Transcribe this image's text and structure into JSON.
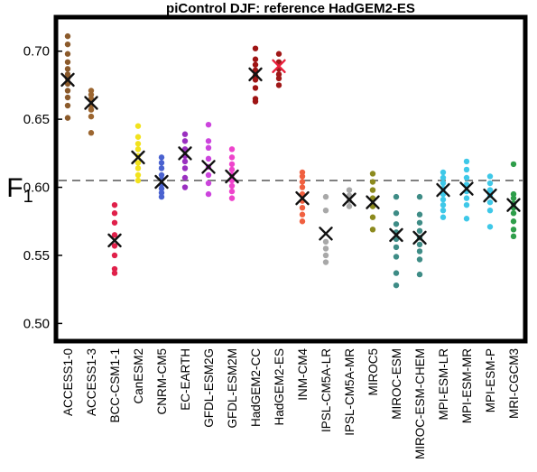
{
  "chart_data": {
    "type": "scatter",
    "title": "piControl DJF: reference HadGEM2-ES",
    "ylabel": "F",
    "ylabel_subscript": "1",
    "ylim": [
      0.487,
      0.725
    ],
    "yticks": [
      0.5,
      0.55,
      0.6,
      0.65,
      0.7
    ],
    "ytick_labels": [
      "0.50",
      "0.55",
      "0.60",
      "0.65",
      "0.70"
    ],
    "reference_line": {
      "y": 0.605,
      "style": "dashed",
      "color": "#808080"
    },
    "grid": false,
    "legend": "none",
    "mean_marker": "x",
    "categories": [
      {
        "name": "ACCESS1-0",
        "color": "#8B5A2B",
        "points": [
          0.711,
          0.705,
          0.698,
          0.692,
          0.687,
          0.683,
          0.68,
          0.676,
          0.671,
          0.666,
          0.66,
          0.651
        ],
        "mean": 0.679
      },
      {
        "name": "ACCESS1-3",
        "color": "#9C6630",
        "points": [
          0.671,
          0.668,
          0.665,
          0.66,
          0.657,
          0.652,
          0.64
        ],
        "mean": 0.662
      },
      {
        "name": "BCC-CSM1-1",
        "color": "#E0204A",
        "points": [
          0.587,
          0.581,
          0.574,
          0.565,
          0.557,
          0.55,
          0.54,
          0.537
        ],
        "mean": 0.561
      },
      {
        "name": "CanESM2",
        "color": "#F2E21C",
        "points": [
          0.645,
          0.637,
          0.632,
          0.628,
          0.623,
          0.618,
          0.614,
          0.609,
          0.605
        ],
        "mean": 0.622
      },
      {
        "name": "CNRM-CM5",
        "color": "#4A62D0",
        "points": [
          0.622,
          0.618,
          0.614,
          0.609,
          0.606,
          0.602,
          0.599,
          0.596,
          0.593
        ],
        "mean": 0.604
      },
      {
        "name": "EC-EARTH",
        "color": "#9A30C0",
        "points": [
          0.639,
          0.634,
          0.628,
          0.623,
          0.619,
          0.614,
          0.607,
          0.6
        ],
        "mean": 0.625
      },
      {
        "name": "GFDL-ESM2G",
        "color": "#CC44DD",
        "points": [
          0.646,
          0.634,
          0.629,
          0.621,
          0.615,
          0.609,
          0.603,
          0.595
        ],
        "mean": 0.615
      },
      {
        "name": "GFDL-ESM2M",
        "color": "#EE44CC",
        "points": [
          0.628,
          0.622,
          0.617,
          0.613,
          0.609,
          0.605,
          0.601,
          0.597,
          0.592
        ],
        "mean": 0.608
      },
      {
        "name": "HadGEM2-CC",
        "color": "#9E1414",
        "points": [
          0.702,
          0.694,
          0.69,
          0.686,
          0.682,
          0.679,
          0.673,
          0.665,
          0.663
        ],
        "mean": 0.683
      },
      {
        "name": "HadGEM2-ES",
        "color": "#A01818",
        "points": [
          0.698,
          0.692,
          0.687,
          0.683,
          0.68,
          0.675
        ],
        "mean": 0.689,
        "mean_highlight": "#E8203C"
      },
      {
        "name": "INM-CM4",
        "color": "#F06040",
        "points": [
          0.611,
          0.608,
          0.604,
          0.6,
          0.595,
          0.59,
          0.585,
          0.58,
          0.575
        ],
        "mean": 0.592
      },
      {
        "name": "IPSL-CM5A-LR",
        "color": "#A8A8A8",
        "points": [
          0.593,
          0.583,
          0.56,
          0.555,
          0.55,
          0.545
        ],
        "mean": 0.566
      },
      {
        "name": "IPSL-CM5A-MR",
        "color": "#A8A8A8",
        "points": [
          0.598,
          0.594,
          0.59,
          0.586
        ],
        "mean": 0.591
      },
      {
        "name": "MIROC5",
        "color": "#8C8A1E",
        "points": [
          0.61,
          0.604,
          0.598,
          0.592,
          0.586,
          0.578,
          0.569
        ],
        "mean": 0.589
      },
      {
        "name": "MIROC-ESM",
        "color": "#3E8C86",
        "points": [
          0.593,
          0.581,
          0.573,
          0.567,
          0.562,
          0.556,
          0.549,
          0.537,
          0.528
        ],
        "mean": 0.565
      },
      {
        "name": "MIROC-ESM-CHEM",
        "color": "#3E8C86",
        "points": [
          0.593,
          0.58,
          0.574,
          0.568,
          0.563,
          0.558,
          0.553,
          0.547,
          0.536
        ],
        "mean": 0.563
      },
      {
        "name": "MPI-ESM-LR",
        "color": "#3EC8E8",
        "points": [
          0.611,
          0.607,
          0.603,
          0.599,
          0.595,
          0.591,
          0.587,
          0.583,
          0.578
        ],
        "mean": 0.598
      },
      {
        "name": "MPI-ESM-MR",
        "color": "#3EC8E8",
        "points": [
          0.619,
          0.613,
          0.607,
          0.602,
          0.597,
          0.592,
          0.587,
          0.577
        ],
        "mean": 0.599
      },
      {
        "name": "MPI-ESM-P",
        "color": "#3EC8E8",
        "points": [
          0.608,
          0.603,
          0.598,
          0.594,
          0.589,
          0.583,
          0.571
        ],
        "mean": 0.594
      },
      {
        "name": "MRI-CGCM3",
        "color": "#2E9E4A",
        "points": [
          0.617,
          0.595,
          0.592,
          0.588,
          0.585,
          0.581,
          0.575,
          0.569,
          0.564
        ],
        "mean": 0.587
      }
    ]
  }
}
